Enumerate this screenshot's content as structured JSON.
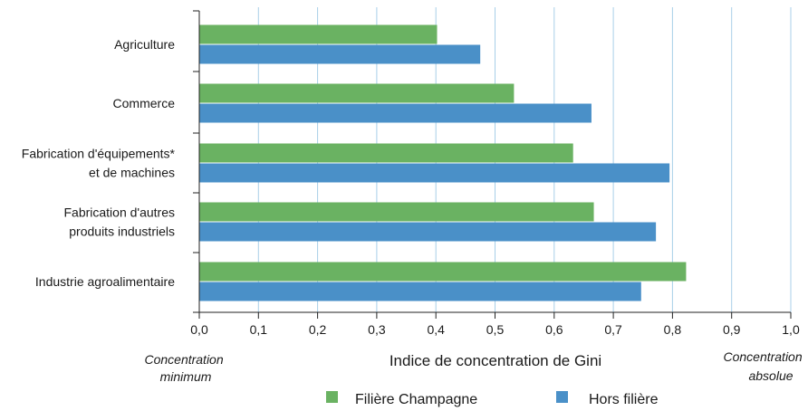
{
  "chart_data": {
    "type": "bar",
    "orientation": "horizontal",
    "categories": [
      [
        "Agriculture"
      ],
      [
        "Commerce"
      ],
      [
        "Fabrication d'équipements*",
        "et de machines"
      ],
      [
        "Fabrication d'autres",
        "produits industriels"
      ],
      [
        "Industrie agroalimentaire"
      ]
    ],
    "series": [
      {
        "name": "Filière Champagne",
        "color": "#6ab262",
        "values": [
          0.402,
          0.532,
          0.632,
          0.667,
          0.823
        ]
      },
      {
        "name": "Hors filière",
        "color": "#4a90c8",
        "values": [
          0.475,
          0.663,
          0.795,
          0.772,
          0.747
        ]
      }
    ],
    "xlim": [
      0,
      1
    ],
    "xticks": [
      "0,0",
      "0,1",
      "0,2",
      "0,3",
      "0,4",
      "0,5",
      "0,6",
      "0,7",
      "0,8",
      "0,9",
      "1,0"
    ],
    "xlabel": "Indice de concentration de Gini",
    "x_min_note": [
      "Concentration",
      "minimum"
    ],
    "x_max_note": [
      "Concentration",
      "absolue"
    ],
    "grid": "vertical",
    "legend_position": "bottom",
    "gridline_color": "#a8cfe8"
  }
}
